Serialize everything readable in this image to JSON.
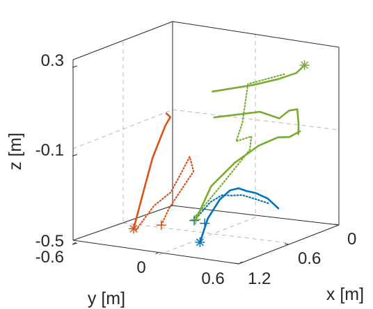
{
  "chart_data": {
    "type": "line3d",
    "title": "",
    "xlabel": "x [m]",
    "ylabel": "y [m]",
    "zlabel": "z [m]",
    "xlim": [
      0,
      1.2
    ],
    "ylim": [
      -0.6,
      0.6
    ],
    "zlim": [
      -0.5,
      0.3
    ],
    "xticks": [
      "0",
      "0.6",
      "1.2"
    ],
    "yticks": [
      "-0.6",
      "0",
      "0.6"
    ],
    "zticks": [
      "-0.5",
      "-0.1",
      "0.3"
    ],
    "grid": true,
    "colors": {
      "blue": "#0072BD",
      "orange": "#D95319",
      "green": "#77AC30",
      "axis": "#262626",
      "grid": "#b8b8b8"
    },
    "series": [
      {
        "color": "blue",
        "style": "solid",
        "points": [
          [
            0.9,
            0.14,
            -0.48
          ],
          [
            0.84,
            0.16,
            -0.38
          ],
          [
            0.78,
            0.21,
            -0.3
          ],
          [
            0.74,
            0.26,
            -0.26
          ],
          [
            0.72,
            0.31,
            -0.25
          ],
          [
            0.71,
            0.36,
            -0.26
          ],
          [
            0.68,
            0.41,
            -0.27
          ],
          [
            0.62,
            0.46,
            -0.3
          ],
          [
            0.56,
            0.5,
            -0.35
          ]
        ]
      },
      {
        "color": "blue",
        "style": "dotted",
        "points": [
          [
            0.82,
            0.05,
            -0.4
          ],
          [
            0.76,
            0.13,
            -0.32
          ],
          [
            0.72,
            0.19,
            -0.29
          ],
          [
            0.7,
            0.25,
            -0.29
          ],
          [
            0.66,
            0.3,
            -0.29
          ],
          [
            0.62,
            0.38,
            -0.31
          ],
          [
            0.58,
            0.45,
            -0.33
          ]
        ]
      },
      {
        "color": "orange",
        "style": "solid",
        "points": [
          [
            0.5,
            -0.58,
            -0.53
          ],
          [
            0.36,
            -0.6,
            -0.4
          ],
          [
            0.24,
            -0.6,
            -0.25
          ],
          [
            0.12,
            -0.58,
            -0.12
          ],
          [
            0.06,
            -0.58,
            -0.09
          ],
          [
            0.04,
            -0.62,
            -0.08
          ]
        ]
      },
      {
        "color": "orange",
        "style": "dotted",
        "points": [
          [
            0.52,
            -0.55,
            -0.53
          ],
          [
            0.42,
            -0.48,
            -0.43
          ],
          [
            0.32,
            -0.42,
            -0.38
          ],
          [
            0.22,
            -0.4,
            -0.3
          ],
          [
            0.16,
            -0.38,
            -0.24
          ],
          [
            0.18,
            -0.34,
            -0.3
          ],
          [
            0.44,
            -0.36,
            -0.43
          ],
          [
            0.6,
            -0.32,
            -0.48
          ]
        ]
      },
      {
        "color": "green",
        "style": "solid",
        "points": [
          [
            0.95,
            0.14,
            -0.37
          ],
          [
            0.8,
            0.16,
            -0.24
          ],
          [
            0.65,
            0.24,
            -0.15
          ],
          [
            0.5,
            0.32,
            -0.09
          ],
          [
            0.4,
            0.4,
            -0.06
          ],
          [
            0.36,
            0.46,
            -0.06
          ],
          [
            0.3,
            0.5,
            -0.04
          ]
        ]
      },
      {
        "color": "green",
        "style": "solid",
        "points": [
          [
            0.02,
            -0.3,
            0.04
          ],
          [
            -0.04,
            -0.04,
            0.08
          ],
          [
            -0.04,
            0.14,
            0.12
          ],
          [
            -0.02,
            0.28,
            0.16
          ],
          [
            -0.02,
            0.34,
            0.2
          ]
        ]
      },
      {
        "color": "green",
        "style": "solid",
        "points": [
          [
            0.0,
            -0.3,
            -0.08
          ],
          [
            -0.05,
            0.0,
            -0.04
          ],
          [
            0.0,
            0.17,
            -0.05
          ],
          [
            0.05,
            0.27,
            0.0
          ],
          [
            0.1,
            0.36,
            0.02
          ],
          [
            0.25,
            0.46,
            -0.02
          ],
          [
            0.32,
            0.5,
            -0.05
          ]
        ]
      },
      {
        "color": "green",
        "style": "dotted",
        "points": [
          [
            0.97,
            0.14,
            -0.36
          ],
          [
            0.78,
            0.25,
            -0.21
          ],
          [
            0.62,
            0.33,
            -0.09
          ],
          [
            0.45,
            0.24,
            -0.06
          ],
          [
            0.4,
            0.1,
            -0.1
          ],
          [
            0.26,
            0.06,
            -0.04
          ],
          [
            0.06,
            -0.02,
            0.1
          ],
          [
            -0.02,
            0.2,
            0.15
          ]
        ]
      }
    ],
    "markers": [
      {
        "color": "blue",
        "symbol": "*",
        "point": [
          0.9,
          0.14,
          -0.48
        ]
      },
      {
        "color": "blue",
        "symbol": "+",
        "point": [
          0.82,
          0.05,
          -0.4
        ]
      },
      {
        "color": "blue",
        "symbol": "+",
        "point": [
          0.91,
          0.18,
          -0.39
        ]
      },
      {
        "color": "orange",
        "symbol": "*",
        "point": [
          0.5,
          -0.58,
          -0.53
        ]
      },
      {
        "color": "orange",
        "symbol": "+",
        "point": [
          0.6,
          -0.32,
          -0.48
        ]
      },
      {
        "color": "green",
        "symbol": "*",
        "point": [
          -0.02,
          0.34,
          0.2
        ]
      },
      {
        "color": "green",
        "symbol": "+",
        "point": [
          0.95,
          0.14,
          -0.37
        ]
      }
    ]
  }
}
